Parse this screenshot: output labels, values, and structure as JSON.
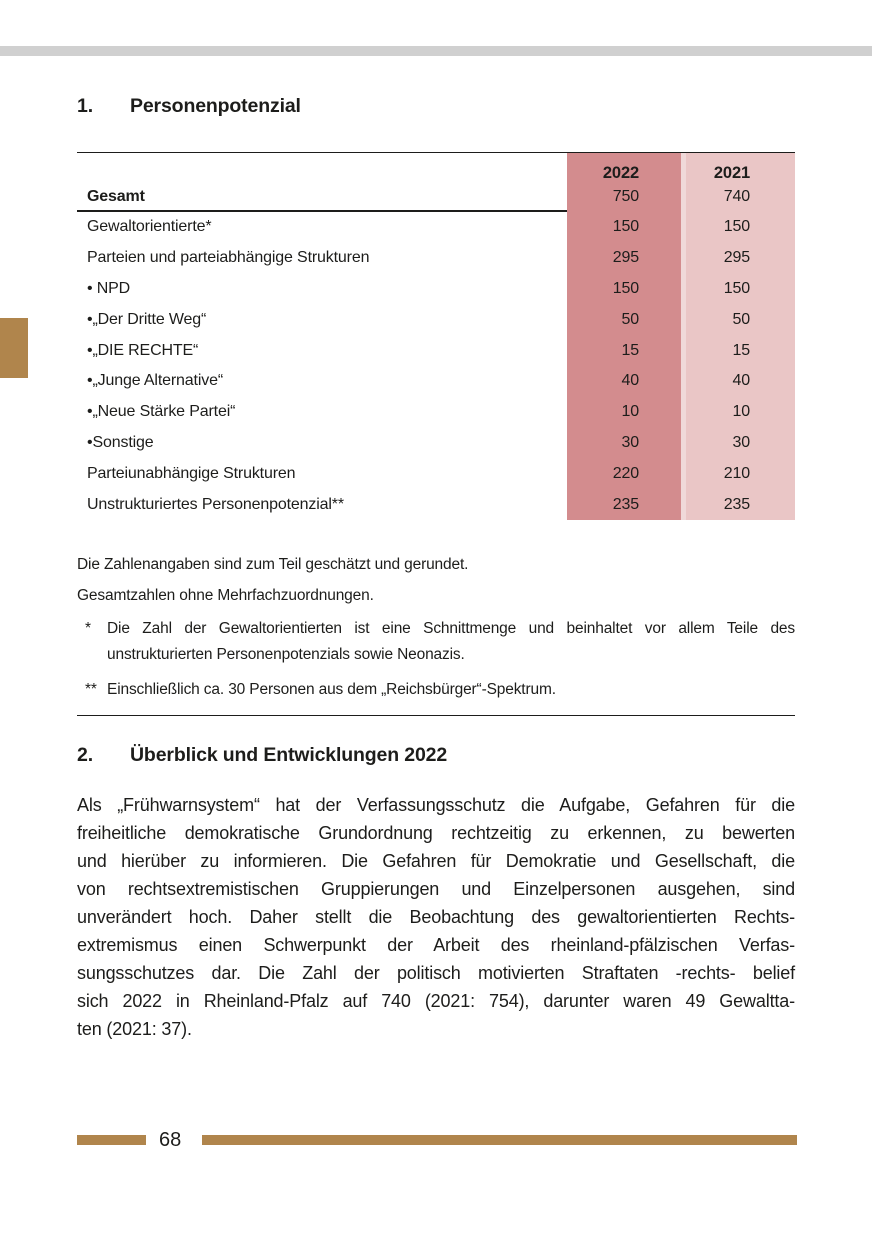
{
  "page": {
    "number": "68",
    "colors": {
      "accent_brown": "#b0854c",
      "col_2022_bg": "#d38c8e",
      "col_2021_bg": "#eac6c6",
      "top_bar_gray": "#d0d0d0"
    }
  },
  "section1": {
    "number": "1.",
    "title": "Personenpotenzial"
  },
  "table": {
    "col_headers": [
      "2022",
      "2021"
    ],
    "total_row": {
      "label": "Gesamt",
      "v2022": "750",
      "v2021": "740"
    },
    "rows": [
      {
        "label": "Gewaltorientierte*",
        "v2022": "150",
        "v2021": "150"
      },
      {
        "label": "Parteien und parteiabhängige Strukturen",
        "v2022": "295",
        "v2021": "295"
      },
      {
        "label": "• NPD",
        "v2022": "150",
        "v2021": "150"
      },
      {
        "label": "•„Der Dritte Weg“",
        "v2022": "50",
        "v2021": "50"
      },
      {
        "label": "•„DIE RECHTE“",
        "v2022": "15",
        "v2021": "15"
      },
      {
        "label": "•„Junge Alternative“",
        "v2022": "40",
        "v2021": "40"
      },
      {
        "label": "•„Neue Stärke Partei“",
        "v2022": "10",
        "v2021": "10"
      },
      {
        "label": "•Sonstige",
        "v2022": "30",
        "v2021": "30"
      },
      {
        "label": "Parteiunabhängige Strukturen",
        "v2022": "220",
        "v2021": "210"
      },
      {
        "label": "Unstrukturiertes Personenpotenzial**",
        "v2022": "235",
        "v2021": "235"
      }
    ]
  },
  "notes": {
    "line1": "Die Zahlenangaben sind zum Teil geschätzt und gerundet.",
    "line2": "Gesamtzahlen ohne Mehrfachzuordnungen.",
    "fn1_marker": "*",
    "fn1_text": "Die Zahl der Gewaltorientierten ist eine Schnittmenge und beinhaltet vor allem Teile des unstrukturierten Personenpotenzials sowie Neonazis.",
    "fn2_marker": "**",
    "fn2_text": "Einschließlich ca. 30 Personen aus dem „Reichsbürger“-Spektrum."
  },
  "section2": {
    "number": "2.",
    "title": "Überblick und Entwicklungen 2022"
  },
  "paragraph": {
    "lines": [
      "Als „Frühwarnsystem“ hat der Verfassungsschutz die Aufgabe, Gefahren für die",
      "freiheitliche demokratische Grundordnung rechtzeitig zu erkennen, zu bewerten",
      "und hierüber zu informieren. Die Gefahren für Demokratie und Gesellschaft, die",
      "von rechtsextremistischen Gruppierungen und Einzelpersonen ausgehen, sind",
      "unverändert hoch. Daher stellt die Beobachtung des gewaltorientierten Rechts-",
      "extremismus einen Schwerpunkt der Arbeit des rheinland-pfälzischen Verfas-",
      "sungsschutzes dar. Die Zahl der politisch motivierten Straftaten -rechts- belief",
      "sich 2022 in Rheinland-Pfalz auf 740 (2021: 754), darunter waren 49 Gewaltta-",
      "ten (2021: 37)."
    ]
  }
}
